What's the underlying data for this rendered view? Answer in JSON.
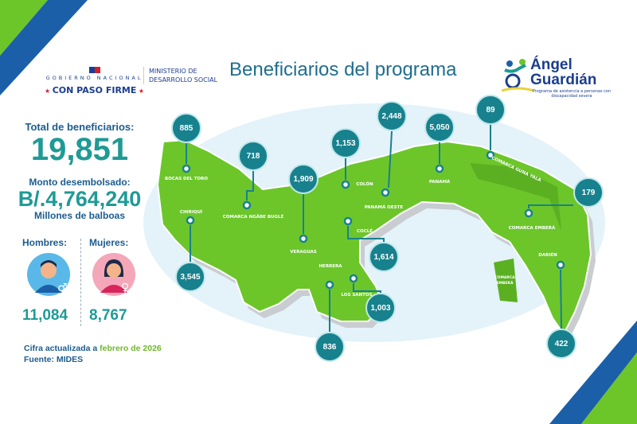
{
  "header": {
    "gov_line1": "GOBIERNO NACIONAL",
    "gov_line2": "CON PASO FIRME",
    "ministry_line1": "MINISTERIO DE",
    "ministry_line2": "DESARROLLO SOCIAL",
    "title": "Beneficiarios del programa",
    "program_logo": {
      "name": "Ángel Guardián",
      "line1": "Ángel",
      "line2": "Guardián",
      "tagline": "Programa de asistencia a personas con discapacidad severa"
    }
  },
  "summary": {
    "total_label": "Total de beneficiarios:",
    "total_value": "19,851",
    "amount_label": "Monto desembolsado:",
    "amount_value": "B/.4,764,240",
    "amount_unit": "Millones de balboas",
    "men_label": "Hombres:",
    "men_value": "11,084",
    "women_label": "Mujeres:",
    "women_value": "8,767"
  },
  "footer": {
    "updated_prefix": "Cifra actualizada a ",
    "updated_date": "febrero de 2026",
    "source": "Fuente: MIDES"
  },
  "colors": {
    "map_green": "#6cc62a",
    "bubble_teal": "#18818e",
    "accent_blue": "#1b5c8f",
    "accent_teal": "#1f9a95",
    "sea": "#d9eef8"
  },
  "regions": [
    {
      "name": "BOCAS DEL TORO",
      "value": "885"
    },
    {
      "name": "COMARCA NGÄBE BUGLÉ",
      "value": "718"
    },
    {
      "name": "VERAGUAS",
      "value": "1,909"
    },
    {
      "name": "COLÓN",
      "value": "1,153"
    },
    {
      "name": "PANAMÁ OESTE",
      "value": "2,448"
    },
    {
      "name": "PANAMÁ",
      "value": "5,050"
    },
    {
      "name": "COMARCA GUNA YALA",
      "value": "89"
    },
    {
      "name": "COMARCA EMBERÁ",
      "value": "179"
    },
    {
      "name": "CHIRIQUÍ",
      "value": "3,545"
    },
    {
      "name": "COCLÉ",
      "value": "1,614"
    },
    {
      "name": "LOS SANTOS",
      "value": "1,003"
    },
    {
      "name": "HERRERA",
      "value": "836"
    },
    {
      "name": "DARIÉN",
      "value": "422"
    }
  ],
  "extra_map_labels": {
    "comarca_embera_small": "COMARCA EMBERÁ"
  }
}
